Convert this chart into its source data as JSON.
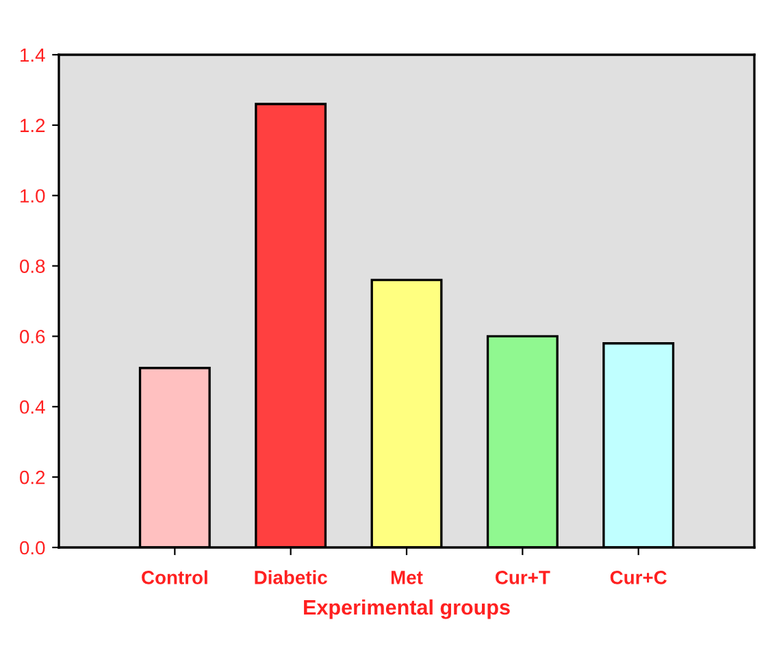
{
  "chart_data": {
    "type": "bar",
    "xlabel": "Experimental groups",
    "categories": [
      "Control",
      "Diabetic",
      "Met",
      "Cur+T",
      "Cur+C"
    ],
    "values": [
      0.51,
      1.26,
      0.76,
      0.6,
      0.58
    ],
    "colors": [
      "#ffc0c0",
      "#ff4040",
      "#ffff80",
      "#90f890",
      "#c0ffff"
    ],
    "ylim": [
      0,
      1.4
    ],
    "yticks": [
      {
        "value": 0,
        "label": "0.0"
      },
      {
        "value": 0.2,
        "label": "0.2"
      },
      {
        "value": 0.4,
        "label": "0.4"
      },
      {
        "value": 0.6,
        "label": "0.6"
      },
      {
        "value": 0.8,
        "label": "0.8"
      },
      {
        "value": 1.0,
        "label": "1.0"
      },
      {
        "value": 1.2,
        "label": "1.2"
      },
      {
        "value": 1.4,
        "label": "1.4"
      }
    ]
  }
}
